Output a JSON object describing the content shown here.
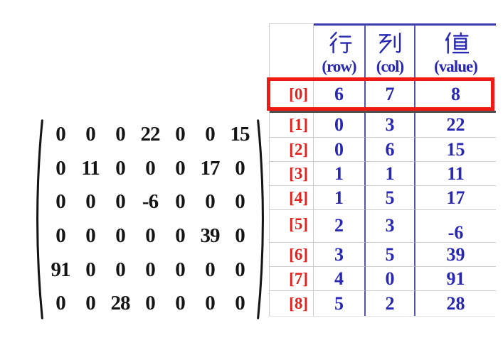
{
  "slide": {
    "description_visible_text_only": true
  },
  "matrix": {
    "rows": [
      [
        "0",
        "0",
        "0",
        "22",
        "0",
        "0",
        "15"
      ],
      [
        "0",
        "11",
        "0",
        "0",
        "0",
        "17",
        "0"
      ],
      [
        "0",
        "0",
        "0",
        "-6",
        "0",
        "0",
        "0"
      ],
      [
        "0",
        "0",
        "0",
        "0",
        "0",
        "39",
        "0"
      ],
      [
        "91",
        "0",
        "0",
        "0",
        "0",
        "0",
        "0"
      ],
      [
        "0",
        "0",
        "28",
        "0",
        "0",
        "0",
        "0"
      ]
    ]
  },
  "table": {
    "columns": [
      {
        "hanzi": "行",
        "english": "(row)"
      },
      {
        "hanzi": "列",
        "english": "(col)"
      },
      {
        "hanzi": "值",
        "english": "(value)"
      }
    ],
    "rows": [
      {
        "label": "[0]",
        "row": "6",
        "col": "7",
        "value": "8",
        "highlighted": true
      },
      {
        "label": "[1]",
        "row": "0",
        "col": "3",
        "value": "22"
      },
      {
        "label": "[2]",
        "row": "0",
        "col": "6",
        "value": "15"
      },
      {
        "label": "[3]",
        "row": "1",
        "col": "1",
        "value": "11"
      },
      {
        "label": "[4]",
        "row": "1",
        "col": "5",
        "value": "17"
      },
      {
        "label": "[5]",
        "row": "2",
        "col": "3",
        "value": "-6",
        "value_offset": true
      },
      {
        "label": "[6]",
        "row": "3",
        "col": "5",
        "value": "39"
      },
      {
        "label": "[7]",
        "row": "4",
        "col": "0",
        "value": "91"
      },
      {
        "label": "[8]",
        "row": "5",
        "col": "2",
        "value": "28"
      }
    ]
  },
  "colors": {
    "text_blue": "#2727b3",
    "label_red": "#e3201c",
    "highlight_red": "#ee1b15",
    "separator_blue": "#5454b0",
    "header_line_blue": "#3a3aae",
    "grid_gray": "#cccccc",
    "dark_separator": "#4f4f4f",
    "matrix_black": "#151515"
  }
}
